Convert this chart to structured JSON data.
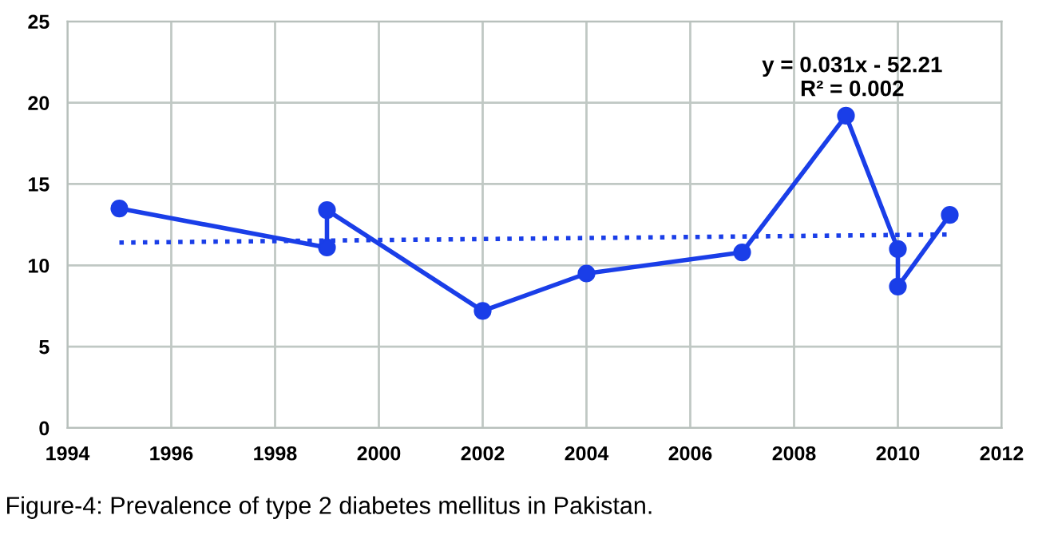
{
  "chart_data": {
    "type": "line",
    "series": [
      {
        "color": "#1a3ee8",
        "marker": "circle",
        "line_style": "solid",
        "x": [
          1995,
          1999,
          1999,
          2002,
          2004,
          2007,
          2009,
          2010,
          2010,
          2011
        ],
        "values": [
          13.5,
          11.1,
          13.4,
          7.2,
          9.5,
          10.8,
          19.2,
          11.0,
          8.7,
          13.1
        ]
      },
      {
        "color": "#1a3ee8",
        "marker": "none",
        "line_style": "dotted",
        "x": [
          1995,
          2011
        ],
        "values": [
          11.4,
          11.9
        ]
      }
    ],
    "xlim": [
      1994,
      2012
    ],
    "xticks": [
      1994,
      1996,
      1998,
      2000,
      2002,
      2004,
      2006,
      2008,
      2010,
      2012
    ],
    "ylim": [
      0,
      25
    ],
    "yticks": [
      0,
      5,
      10,
      15,
      20,
      25
    ],
    "grid": true,
    "legend": false,
    "annotations": [
      "y = 0.031x - 52.21\nR² = 0.002",
      "Figure-4: Prevalence of type 2 diabetes mellitus in Pakistan."
    ]
  }
}
